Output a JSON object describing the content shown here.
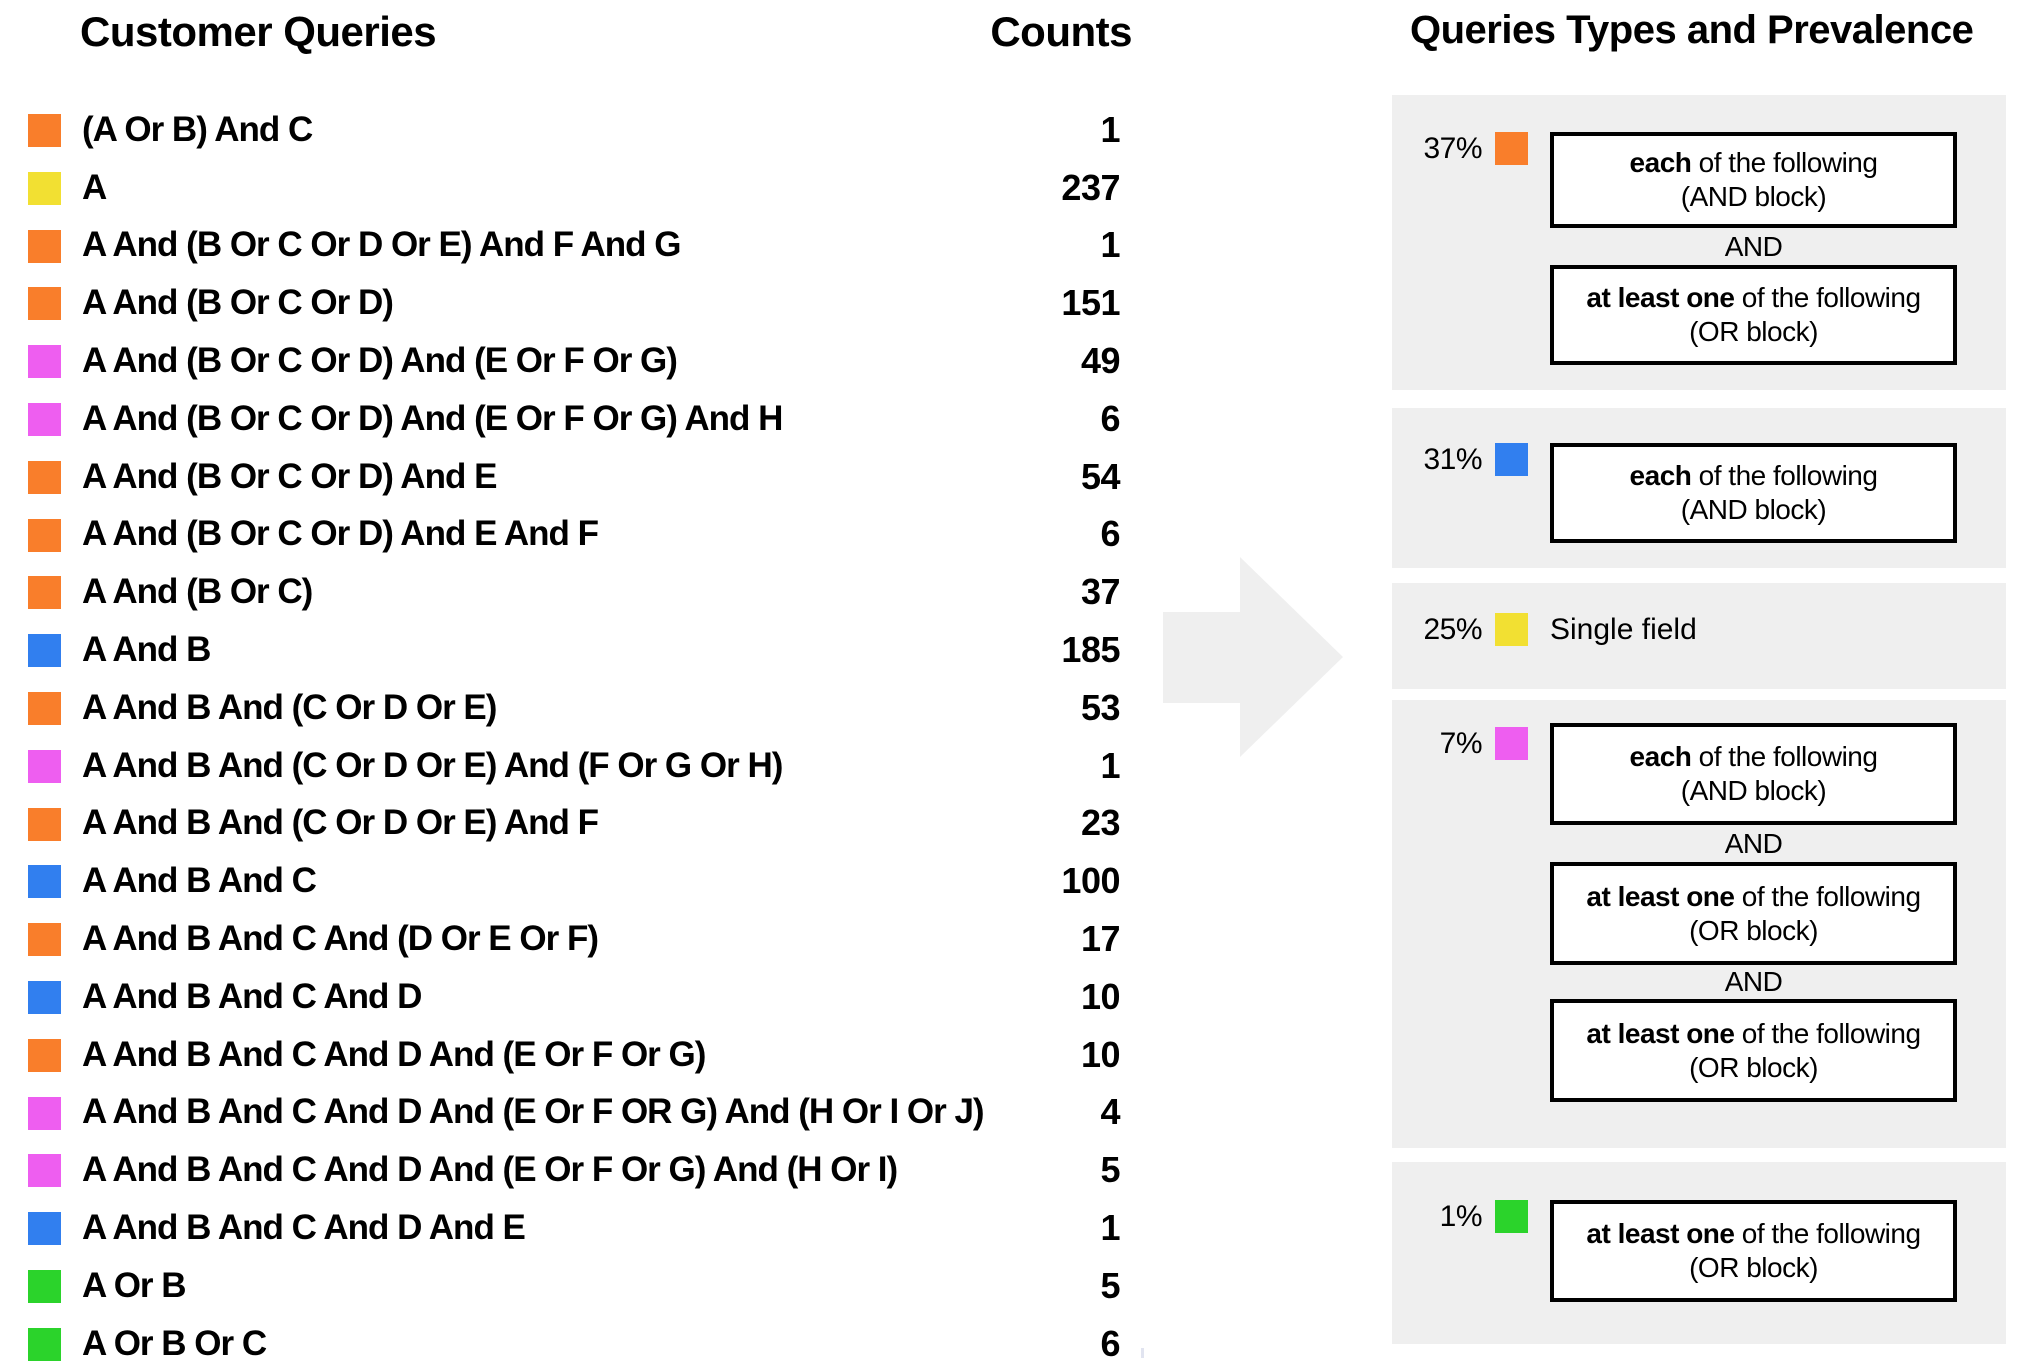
{
  "palette": {
    "orange": "#F97E2B",
    "yellow": "#F2E032",
    "magenta": "#EE5EF0",
    "blue": "#317FEF",
    "green": "#2BD32B"
  },
  "left_panel": {
    "title": "Customer Queries",
    "counts_title": "Counts",
    "rows": [
      {
        "color": "orange",
        "query": "(A Or B) And C",
        "count": "1"
      },
      {
        "color": "yellow",
        "query": "A",
        "count": "237"
      },
      {
        "color": "orange",
        "query": "A And (B Or C Or D Or E) And F And G",
        "count": "1"
      },
      {
        "color": "orange",
        "query": "A And (B Or C Or D)",
        "count": "151"
      },
      {
        "color": "magenta",
        "query": "A And (B Or C Or D) And (E Or F Or G)",
        "count": "49"
      },
      {
        "color": "magenta",
        "query": "A And (B Or C Or D) And (E Or F Or G) And H",
        "count": "6"
      },
      {
        "color": "orange",
        "query": "A And (B Or C Or D) And E",
        "count": "54"
      },
      {
        "color": "orange",
        "query": "A And (B Or C Or D) And E And F",
        "count": "6"
      },
      {
        "color": "orange",
        "query": "A And (B Or C)",
        "count": "37"
      },
      {
        "color": "blue",
        "query": "A And B",
        "count": "185"
      },
      {
        "color": "orange",
        "query": "A And B And (C Or D Or E)",
        "count": "53"
      },
      {
        "color": "magenta",
        "query": "A And B And (C Or D Or E) And (F Or G Or H)",
        "count": "1"
      },
      {
        "color": "orange",
        "query": "A And B And (C Or D Or E) And F",
        "count": "23"
      },
      {
        "color": "blue",
        "query": "A And B And C",
        "count": "100"
      },
      {
        "color": "orange",
        "query": "A And B And C And (D Or E Or F)",
        "count": "17"
      },
      {
        "color": "blue",
        "query": "A And B And C And D",
        "count": "10"
      },
      {
        "color": "orange",
        "query": "A And B And C And D And (E Or F Or G)",
        "count": "10"
      },
      {
        "color": "magenta",
        "query": "A And B And C And D And (E Or F OR G) And (H Or I Or J)",
        "count": "4"
      },
      {
        "color": "magenta",
        "query": "A And B And C And D And (E Or F Or G) And (H Or I)",
        "count": "5"
      },
      {
        "color": "blue",
        "query": "A And B And C And D And E",
        "count": "1"
      },
      {
        "color": "green",
        "query": "A Or B",
        "count": "5"
      },
      {
        "color": "green",
        "query": "A Or B Or C",
        "count": "6"
      }
    ]
  },
  "right_panel": {
    "title": "Queries Types and Prevalence",
    "and_separator": "AND",
    "cards": [
      {
        "pct": "37%",
        "color": "orange",
        "items": [
          {
            "kind": "box",
            "lead": "each",
            "rest": " of the following",
            "sub": "(AND block)"
          },
          {
            "kind": "sep"
          },
          {
            "kind": "box",
            "lead": "at least one",
            "rest": " of the following",
            "sub": "(OR block)"
          }
        ]
      },
      {
        "pct": "31%",
        "color": "blue",
        "items": [
          {
            "kind": "box",
            "lead": "each",
            "rest": " of the following",
            "sub": "(AND block)"
          }
        ]
      },
      {
        "pct": "25%",
        "color": "yellow",
        "items": [
          {
            "kind": "label",
            "label": "Single field"
          }
        ]
      },
      {
        "pct": "7%",
        "color": "magenta",
        "items": [
          {
            "kind": "box",
            "lead": "each",
            "rest": " of the following",
            "sub": "(AND block)"
          },
          {
            "kind": "sep"
          },
          {
            "kind": "box",
            "lead": "at least one",
            "rest": " of the following",
            "sub": "(OR block)"
          },
          {
            "kind": "sep"
          },
          {
            "kind": "box",
            "lead": "at least one",
            "rest": " of the following",
            "sub": "(OR block)"
          }
        ]
      },
      {
        "pct": "1%",
        "color": "green",
        "items": [
          {
            "kind": "box",
            "lead": "at least one",
            "rest": " of the following",
            "sub": "(OR block)"
          }
        ]
      }
    ]
  }
}
